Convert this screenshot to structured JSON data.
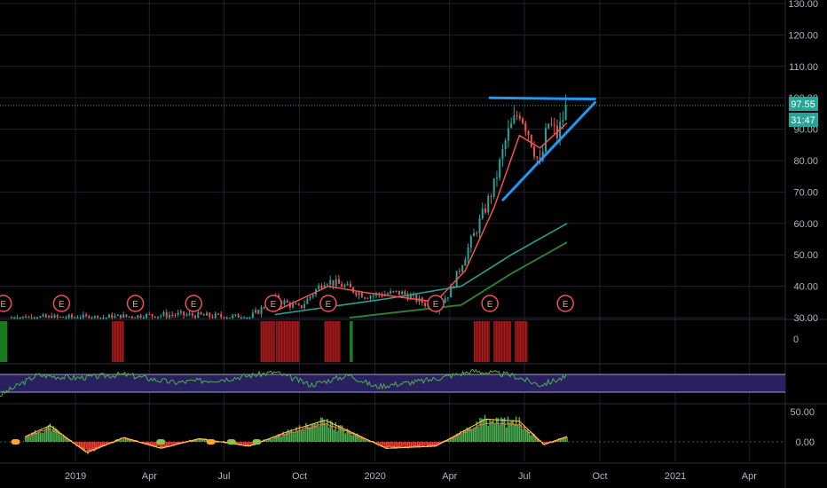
{
  "chart_data": {
    "type": "candlestick",
    "symbol": "",
    "y_axis": {
      "ticks": [
        "130.00",
        "120.00",
        "110.00",
        "100.00",
        "90.00",
        "80.00",
        "70.00",
        "60.00",
        "50.00",
        "40.00",
        "30.00"
      ],
      "range": [
        30,
        130
      ]
    },
    "x_axis": {
      "labels": [
        "2019",
        "Apr",
        "Jul",
        "Oct",
        "2020",
        "Apr",
        "Jul",
        "Oct",
        "2021",
        "Apr"
      ],
      "range": [
        "2018-10-01",
        "2021-05-15"
      ]
    },
    "last_price": "97.55",
    "countdown": "31:47",
    "colors": {
      "up": "#26a69a",
      "down": "#ef5350",
      "ma_fast": "#ef5350",
      "ma_mid": "#26a69a",
      "ma_slow": "#2e7d32",
      "trendline": "#2196f3",
      "earnings": "#ef5350",
      "rsi": "#4caf50",
      "rsi_band": "#2a2060",
      "osc_up": "#4caf50",
      "osc_down": "#f44336"
    },
    "price_series": [
      {
        "date": "2018-10-15",
        "close": 30
      },
      {
        "date": "2019-02-01",
        "close": 30
      },
      {
        "date": "2019-05-01",
        "close": 31
      },
      {
        "date": "2019-08-01",
        "close": 30
      },
      {
        "date": "2019-09-01",
        "close": 36
      },
      {
        "date": "2019-10-01",
        "close": 33
      },
      {
        "date": "2019-11-01",
        "close": 42
      },
      {
        "date": "2019-11-25",
        "close": 40
      },
      {
        "date": "2019-12-20",
        "close": 37
      },
      {
        "date": "2020-02-01",
        "close": 38
      },
      {
        "date": "2020-03-15",
        "close": 33
      },
      {
        "date": "2020-04-01",
        "close": 38
      },
      {
        "date": "2020-04-20",
        "close": 50
      },
      {
        "date": "2020-05-10",
        "close": 62
      },
      {
        "date": "2020-05-25",
        "close": 72
      },
      {
        "date": "2020-06-10",
        "close": 88
      },
      {
        "date": "2020-06-25",
        "close": 96
      },
      {
        "date": "2020-07-05",
        "close": 90
      },
      {
        "date": "2020-07-20",
        "close": 78
      },
      {
        "date": "2020-07-30",
        "close": 92
      },
      {
        "date": "2020-08-10",
        "close": 88
      },
      {
        "date": "2020-08-22",
        "close": 97.55
      }
    ],
    "ma_fast": [
      {
        "date": "2019-09-01",
        "value": 32
      },
      {
        "date": "2019-11-05",
        "value": 40
      },
      {
        "date": "2019-12-20",
        "value": 38
      },
      {
        "date": "2020-03-15",
        "value": 35
      },
      {
        "date": "2020-04-20",
        "value": 45
      },
      {
        "date": "2020-05-25",
        "value": 65
      },
      {
        "date": "2020-06-25",
        "value": 88
      },
      {
        "date": "2020-07-20",
        "value": 84
      },
      {
        "date": "2020-08-22",
        "value": 92
      }
    ],
    "ma_mid": [
      {
        "date": "2019-09-01",
        "value": 31
      },
      {
        "date": "2020-01-15",
        "value": 36
      },
      {
        "date": "2020-04-15",
        "value": 40
      },
      {
        "date": "2020-06-15",
        "value": 50
      },
      {
        "date": "2020-08-22",
        "value": 60
      }
    ],
    "ma_slow": [
      {
        "date": "2019-12-01",
        "value": 30
      },
      {
        "date": "2020-04-15",
        "value": 34
      },
      {
        "date": "2020-06-15",
        "value": 44
      },
      {
        "date": "2020-08-22",
        "value": 54
      }
    ],
    "trendlines": [
      {
        "from": {
          "date": "2020-05-20",
          "value": 100
        },
        "to": {
          "date": "2020-09-25",
          "value": 99.6
        }
      },
      {
        "from": {
          "date": "2020-06-05",
          "value": 67.5
        },
        "to": {
          "date": "2020-09-25",
          "value": 98.5
        }
      }
    ],
    "earnings_markers": {
      "label": "E",
      "dates": [
        "2018-10-05",
        "2018-12-15",
        "2019-03-15",
        "2019-05-25",
        "2019-08-30",
        "2019-11-05",
        "2020-03-15",
        "2020-05-20",
        "2020-08-20"
      ]
    },
    "indicator_1": {
      "zero_label": "0",
      "red_ranges": [
        [
          "2019-02-15",
          "2019-03-01"
        ],
        [
          "2019-08-15",
          "2019-09-01"
        ],
        [
          "2019-09-03",
          "2019-10-01"
        ],
        [
          "2019-11-01",
          "2019-11-20"
        ],
        [
          "2020-05-01",
          "2020-05-20"
        ],
        [
          "2020-05-25",
          "2020-06-15"
        ],
        [
          "2020-06-20",
          "2020-07-05"
        ]
      ],
      "green_ranges": [
        [
          "2018-10-01",
          "2018-10-10"
        ],
        [
          "2019-12-01",
          "2019-12-05"
        ]
      ]
    },
    "indicator_2": {
      "rsi": [
        {
          "date": "2018-10-01",
          "value": 30
        },
        {
          "date": "2018-11-15",
          "value": 65
        },
        {
          "date": "2019-01-01",
          "value": 60
        },
        {
          "date": "2019-03-01",
          "value": 66
        },
        {
          "date": "2019-05-01",
          "value": 52
        },
        {
          "date": "2019-07-01",
          "value": 58
        },
        {
          "date": "2019-09-01",
          "value": 70
        },
        {
          "date": "2019-10-15",
          "value": 48
        },
        {
          "date": "2019-12-01",
          "value": 65
        },
        {
          "date": "2020-01-01",
          "value": 45
        },
        {
          "date": "2020-03-01",
          "value": 55
        },
        {
          "date": "2020-05-01",
          "value": 72
        },
        {
          "date": "2020-06-15",
          "value": 65
        },
        {
          "date": "2020-07-20",
          "value": 48
        },
        {
          "date": "2020-08-22",
          "value": 62
        }
      ]
    },
    "indicator_3": {
      "ticks": [
        "50.00",
        "0.00"
      ],
      "histogram": [
        {
          "date": "2018-11-01",
          "value": 10
        },
        {
          "date": "2018-12-01",
          "value": 30
        },
        {
          "date": "2019-01-15",
          "value": -20
        },
        {
          "date": "2019-03-01",
          "value": 8
        },
        {
          "date": "2019-04-15",
          "value": -12
        },
        {
          "date": "2019-06-01",
          "value": 6
        },
        {
          "date": "2019-08-01",
          "value": -8
        },
        {
          "date": "2019-09-15",
          "value": 18
        },
        {
          "date": "2019-11-01",
          "value": 40
        },
        {
          "date": "2020-01-15",
          "value": -12
        },
        {
          "date": "2020-03-15",
          "value": -8
        },
        {
          "date": "2020-05-15",
          "value": 42
        },
        {
          "date": "2020-06-25",
          "value": 38
        },
        {
          "date": "2020-07-25",
          "value": -5
        },
        {
          "date": "2020-08-22",
          "value": 10
        }
      ]
    }
  }
}
